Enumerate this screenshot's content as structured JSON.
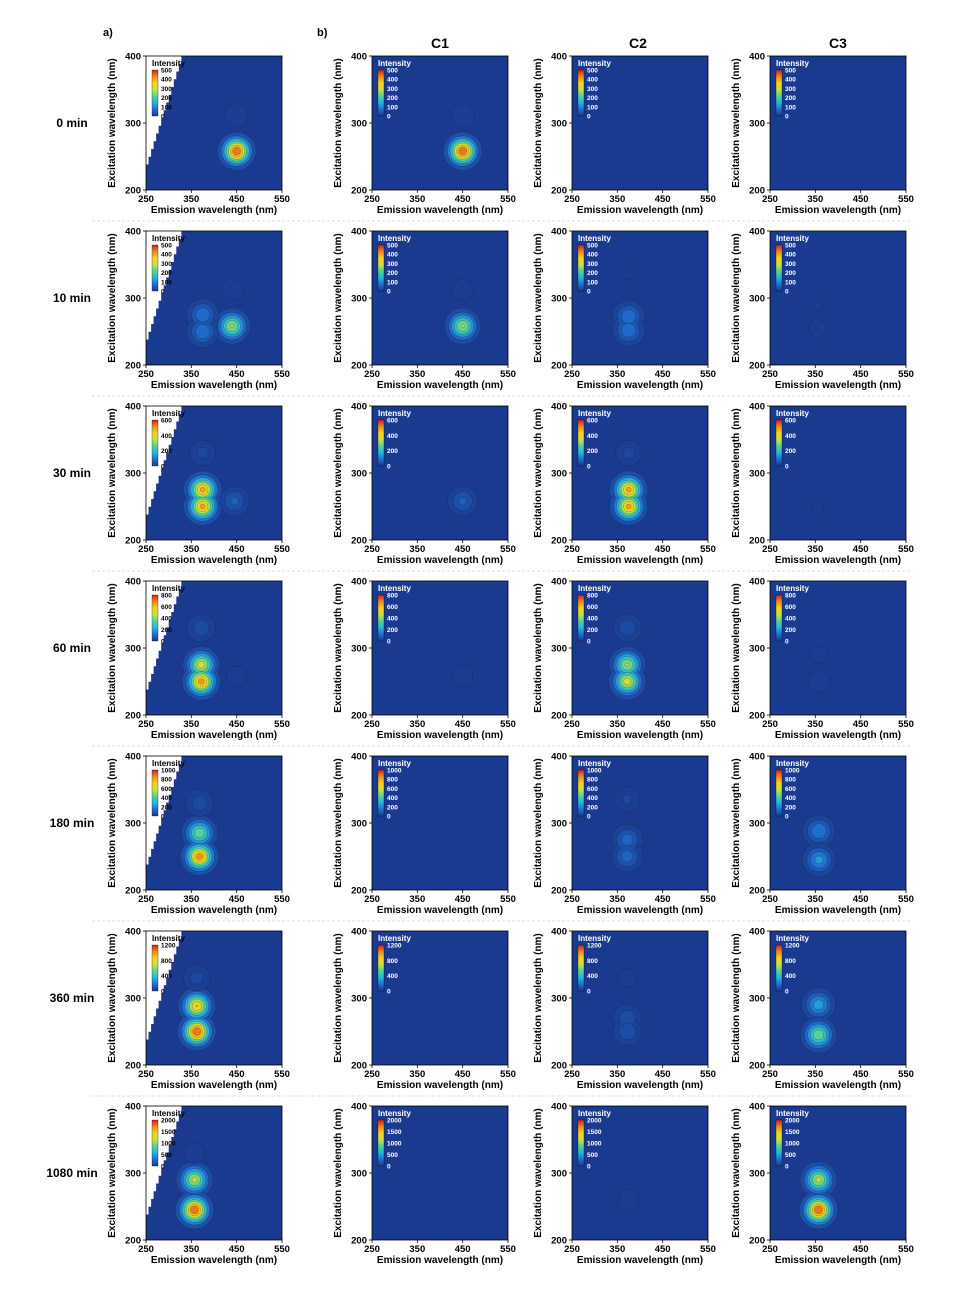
{
  "figure": {
    "panel_labels": [
      "a)",
      "b)"
    ],
    "component_headers": [
      "C1",
      "C2",
      "C3"
    ],
    "time_labels": [
      "0 min",
      "10 min",
      "30 min",
      "60 min",
      "180 min",
      "360 min",
      "1080 min"
    ],
    "colors": {
      "background": "#1a3a8f",
      "scale": [
        "#1a3a8f",
        "#1f6fd0",
        "#27b4d8",
        "#52d0a0",
        "#c8e23a",
        "#f5d21e",
        "#f08a1a",
        "#d0201e"
      ],
      "contour_line": "#1a1a1a",
      "separator": "#bbbbbb"
    }
  },
  "chart_data": {
    "type": "heatmap",
    "xlabel": "Emission wavelength (nm)",
    "ylabel": "Excitation wavelength (nm)",
    "xlim": [
      250,
      550
    ],
    "ylim": [
      200,
      400
    ],
    "xticks": [
      250,
      350,
      450,
      550
    ],
    "yticks": [
      200,
      300,
      400
    ],
    "xtick_labels": [
      "250",
      "350",
      "450",
      "550"
    ],
    "ytick_labels": [
      "200",
      "300",
      "400"
    ],
    "legend_title": "Intensity",
    "legend_placement": "top-left",
    "columns": [
      "a)",
      "C1",
      "C2",
      "C3"
    ],
    "rows": [
      {
        "time": "0 min",
        "scale_ticks": [
          "500",
          "400",
          "300",
          "200",
          "100",
          "0"
        ],
        "scale_max": 550,
        "panels": [
          {
            "peaks": [
              {
                "em": 450,
                "ex": 258,
                "i": 550
              },
              {
                "em": 450,
                "ex": 312,
                "i": 90
              }
            ]
          },
          {
            "peaks": [
              {
                "em": 450,
                "ex": 258,
                "i": 550
              },
              {
                "em": 450,
                "ex": 312,
                "i": 90
              }
            ]
          },
          {
            "peaks": []
          },
          {
            "peaks": []
          }
        ]
      },
      {
        "time": "10 min",
        "scale_ticks": [
          "500",
          "400",
          "300",
          "200",
          "100",
          "0"
        ],
        "scale_max": 550,
        "panels": [
          {
            "peaks": [
              {
                "em": 440,
                "ex": 258,
                "i": 420
              },
              {
                "em": 375,
                "ex": 275,
                "i": 240
              },
              {
                "em": 375,
                "ex": 250,
                "i": 240
              },
              {
                "em": 440,
                "ex": 312,
                "i": 80
              }
            ]
          },
          {
            "peaks": [
              {
                "em": 450,
                "ex": 258,
                "i": 420
              },
              {
                "em": 450,
                "ex": 312,
                "i": 80
              }
            ]
          },
          {
            "peaks": [
              {
                "em": 375,
                "ex": 272,
                "i": 240
              },
              {
                "em": 375,
                "ex": 252,
                "i": 240
              },
              {
                "em": 375,
                "ex": 335,
                "i": 40
              }
            ]
          },
          {
            "peaks": [
              {
                "em": 355,
                "ex": 290,
                "i": 40
              },
              {
                "em": 355,
                "ex": 255,
                "i": 60
              }
            ]
          }
        ]
      },
      {
        "time": "30 min",
        "scale_ticks": [
          "600",
          "400",
          "200",
          "0"
        ],
        "scale_max": 650,
        "panels": [
          {
            "peaks": [
              {
                "em": 375,
                "ex": 275,
                "i": 600
              },
              {
                "em": 375,
                "ex": 250,
                "i": 600
              },
              {
                "em": 445,
                "ex": 258,
                "i": 220
              },
              {
                "em": 375,
                "ex": 330,
                "i": 140
              }
            ]
          },
          {
            "peaks": [
              {
                "em": 450,
                "ex": 258,
                "i": 220
              },
              {
                "em": 450,
                "ex": 312,
                "i": 40
              }
            ]
          },
          {
            "peaks": [
              {
                "em": 375,
                "ex": 275,
                "i": 600
              },
              {
                "em": 375,
                "ex": 250,
                "i": 600
              },
              {
                "em": 375,
                "ex": 330,
                "i": 140
              }
            ]
          },
          {
            "peaks": [
              {
                "em": 355,
                "ex": 290,
                "i": 30
              },
              {
                "em": 355,
                "ex": 248,
                "i": 50
              }
            ]
          }
        ]
      },
      {
        "time": "60 min",
        "scale_ticks": [
          "800",
          "600",
          "400",
          "200",
          "0"
        ],
        "scale_max": 850,
        "panels": [
          {
            "peaks": [
              {
                "em": 372,
                "ex": 275,
                "i": 700
              },
              {
                "em": 372,
                "ex": 250,
                "i": 800
              },
              {
                "em": 372,
                "ex": 330,
                "i": 230
              },
              {
                "em": 450,
                "ex": 258,
                "i": 110
              }
            ]
          },
          {
            "peaks": [
              {
                "em": 450,
                "ex": 258,
                "i": 110
              }
            ]
          },
          {
            "peaks": [
              {
                "em": 372,
                "ex": 275,
                "i": 650
              },
              {
                "em": 372,
                "ex": 250,
                "i": 700
              },
              {
                "em": 372,
                "ex": 330,
                "i": 230
              }
            ]
          },
          {
            "peaks": [
              {
                "em": 358,
                "ex": 290,
                "i": 90
              },
              {
                "em": 358,
                "ex": 250,
                "i": 130
              }
            ]
          }
        ]
      },
      {
        "time": "180 min",
        "scale_ticks": [
          "1000",
          "800",
          "600",
          "400",
          "200",
          "0"
        ],
        "scale_max": 1100,
        "panels": [
          {
            "peaks": [
              {
                "em": 368,
                "ex": 285,
                "i": 800
              },
              {
                "em": 368,
                "ex": 250,
                "i": 1050
              },
              {
                "em": 368,
                "ex": 330,
                "i": 280
              }
            ]
          },
          {
            "peaks": []
          },
          {
            "peaks": [
              {
                "em": 372,
                "ex": 275,
                "i": 420
              },
              {
                "em": 372,
                "ex": 250,
                "i": 420
              },
              {
                "em": 372,
                "ex": 335,
                "i": 220
              }
            ]
          },
          {
            "peaks": [
              {
                "em": 358,
                "ex": 288,
                "i": 500
              },
              {
                "em": 358,
                "ex": 245,
                "i": 560
              }
            ]
          }
        ]
      },
      {
        "time": "360 min",
        "scale_ticks": [
          "1200",
          "800",
          "400",
          "0"
        ],
        "scale_max": 1300,
        "panels": [
          {
            "peaks": [
              {
                "em": 362,
                "ex": 288,
                "i": 1150
              },
              {
                "em": 362,
                "ex": 250,
                "i": 1300
              },
              {
                "em": 362,
                "ex": 330,
                "i": 300
              }
            ]
          },
          {
            "peaks": []
          },
          {
            "peaks": [
              {
                "em": 372,
                "ex": 270,
                "i": 360
              },
              {
                "em": 372,
                "ex": 250,
                "i": 380
              },
              {
                "em": 372,
                "ex": 330,
                "i": 150
              }
            ]
          },
          {
            "peaks": [
              {
                "em": 357,
                "ex": 290,
                "i": 700
              },
              {
                "em": 357,
                "ex": 245,
                "i": 950
              }
            ]
          }
        ]
      },
      {
        "time": "1080 min",
        "scale_ticks": [
          "2000",
          "1500",
          "1000",
          "500",
          "0"
        ],
        "scale_max": 2100,
        "panels": [
          {
            "peaks": [
              {
                "em": 357,
                "ex": 290,
                "i": 1650
              },
              {
                "em": 357,
                "ex": 245,
                "i": 2100
              },
              {
                "em": 357,
                "ex": 330,
                "i": 300
              }
            ]
          },
          {
            "peaks": []
          },
          {
            "peaks": [
              {
                "em": 375,
                "ex": 260,
                "i": 280
              }
            ]
          },
          {
            "peaks": [
              {
                "em": 357,
                "ex": 290,
                "i": 1650
              },
              {
                "em": 357,
                "ex": 245,
                "i": 2100
              }
            ]
          }
        ]
      }
    ]
  }
}
